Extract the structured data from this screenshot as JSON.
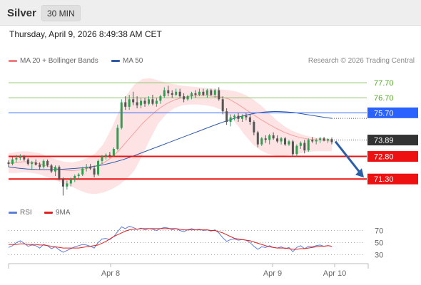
{
  "header": {
    "symbol": "Silver",
    "timeframe": "30 MIN"
  },
  "datetime": "Thursday, April 9, 2026 8:49:38 AM CET",
  "legend": {
    "items": [
      {
        "label": "MA 20 + Bollinger Bands",
        "color": "#f08080"
      },
      {
        "label": "MA 50",
        "color": "#2e5aa8"
      }
    ],
    "copyright": "Research © 2026 Trading Central"
  },
  "rsi_legend": {
    "items": [
      {
        "label": "RSI",
        "color": "#5b7fd6"
      },
      {
        "label": "9MA",
        "color": "#e02020"
      }
    ]
  },
  "chart_data": [
    {
      "type": "candlestick",
      "title": "",
      "x_ticks": [
        "Apr 8",
        "Apr 9",
        "Apr 10"
      ],
      "y_range": [
        69.7,
        78.7
      ],
      "last_price": 73.89,
      "levels": [
        {
          "value": 77.7,
          "label": "77.70",
          "kind": "resistance",
          "color": "#8fc46b"
        },
        {
          "value": 76.7,
          "label": "76.70",
          "kind": "resistance",
          "color": "#8fc46b"
        },
        {
          "value": 75.7,
          "label": "75.70",
          "kind": "pivot",
          "color": "#2962ff"
        },
        {
          "value": 73.89,
          "label": "73.89",
          "kind": "last",
          "color": "#333333"
        },
        {
          "value": 72.8,
          "label": "72.80",
          "kind": "support",
          "color": "#ee1111"
        },
        {
          "value": 71.3,
          "label": "71.30",
          "kind": "support",
          "color": "#ee1111"
        }
      ],
      "forecast": {
        "from": 73.89,
        "to": 71.3,
        "color": "#2b5fa8"
      },
      "candles": [
        [
          72.4,
          72.55,
          72.1,
          72.3
        ],
        [
          72.3,
          72.75,
          72.2,
          72.6
        ],
        [
          72.6,
          72.9,
          72.4,
          72.7
        ],
        [
          72.7,
          72.95,
          72.55,
          72.8
        ],
        [
          72.8,
          72.9,
          72.5,
          72.6
        ],
        [
          72.6,
          72.7,
          72.2,
          72.3
        ],
        [
          72.3,
          72.5,
          71.9,
          72.4
        ],
        [
          72.4,
          72.6,
          72.2,
          72.25
        ],
        [
          72.25,
          72.4,
          71.9,
          72.1
        ],
        [
          72.1,
          72.6,
          72.0,
          72.5
        ],
        [
          72.5,
          72.6,
          72.1,
          72.2
        ],
        [
          72.2,
          72.3,
          71.7,
          71.8
        ],
        [
          71.8,
          72.2,
          71.5,
          72.1
        ],
        [
          72.1,
          72.2,
          71.2,
          71.3
        ],
        [
          71.3,
          71.4,
          70.2,
          70.8
        ],
        [
          70.8,
          71.2,
          70.6,
          71.0
        ],
        [
          71.0,
          71.4,
          70.8,
          71.3
        ],
        [
          71.3,
          71.6,
          71.1,
          71.5
        ],
        [
          71.5,
          71.7,
          71.3,
          71.6
        ],
        [
          71.6,
          72.1,
          71.5,
          72.0
        ],
        [
          72.0,
          72.3,
          71.8,
          72.1
        ],
        [
          72.1,
          72.3,
          71.9,
          72.0
        ],
        [
          72.0,
          72.2,
          71.4,
          71.6
        ],
        [
          71.6,
          72.6,
          71.5,
          72.5
        ],
        [
          72.5,
          72.9,
          72.3,
          72.8
        ],
        [
          72.8,
          73.0,
          72.6,
          72.9
        ],
        [
          72.9,
          73.1,
          72.7,
          72.85
        ],
        [
          72.85,
          73.4,
          72.8,
          73.3
        ],
        [
          73.3,
          74.9,
          73.2,
          74.7
        ],
        [
          74.7,
          76.6,
          74.6,
          76.4
        ],
        [
          76.4,
          76.8,
          75.9,
          76.1
        ],
        [
          76.1,
          76.9,
          75.9,
          76.6
        ],
        [
          76.6,
          77.1,
          76.2,
          76.4
        ],
        [
          76.4,
          76.8,
          76.0,
          76.2
        ],
        [
          76.2,
          76.7,
          76.0,
          76.5
        ],
        [
          76.5,
          76.7,
          76.1,
          76.3
        ],
        [
          76.3,
          76.8,
          76.2,
          76.6
        ],
        [
          76.6,
          76.9,
          76.2,
          76.3
        ],
        [
          76.3,
          76.7,
          76.1,
          76.5
        ],
        [
          76.5,
          76.9,
          76.3,
          76.8
        ],
        [
          76.8,
          77.4,
          76.7,
          77.2
        ],
        [
          77.2,
          77.5,
          76.8,
          77.0
        ],
        [
          77.0,
          77.2,
          76.7,
          76.9
        ],
        [
          76.9,
          77.3,
          76.8,
          77.1
        ],
        [
          77.1,
          77.3,
          76.7,
          76.8
        ],
        [
          76.8,
          77.0,
          76.4,
          76.6
        ],
        [
          76.6,
          76.9,
          76.5,
          76.8
        ],
        [
          76.8,
          77.1,
          76.6,
          77.0
        ],
        [
          77.0,
          77.2,
          76.7,
          76.9
        ],
        [
          76.9,
          77.3,
          76.8,
          77.1
        ],
        [
          77.1,
          77.3,
          76.8,
          76.9
        ],
        [
          76.9,
          77.3,
          76.7,
          77.2
        ],
        [
          77.2,
          77.3,
          76.8,
          76.9
        ],
        [
          76.9,
          77.3,
          76.7,
          77.2
        ],
        [
          77.2,
          77.4,
          76.5,
          76.6
        ],
        [
          76.6,
          76.8,
          75.6,
          75.8
        ],
        [
          75.8,
          76.0,
          74.9,
          75.1
        ],
        [
          75.1,
          75.6,
          74.8,
          75.4
        ],
        [
          75.4,
          75.6,
          75.2,
          75.5
        ],
        [
          75.5,
          75.7,
          75.1,
          75.3
        ],
        [
          75.3,
          75.6,
          75.1,
          75.5
        ],
        [
          75.5,
          75.7,
          75.2,
          75.4
        ],
        [
          75.4,
          75.6,
          74.9,
          75.1
        ],
        [
          75.1,
          75.2,
          74.2,
          74.4
        ],
        [
          74.4,
          74.5,
          73.4,
          73.6
        ],
        [
          73.6,
          74.1,
          73.5,
          74.0
        ],
        [
          74.0,
          74.2,
          73.7,
          73.9
        ],
        [
          73.9,
          74.3,
          73.6,
          74.2
        ],
        [
          74.2,
          74.4,
          73.9,
          74.0
        ],
        [
          74.0,
          74.2,
          73.7,
          73.8
        ],
        [
          73.8,
          74.1,
          73.6,
          74.0
        ],
        [
          74.0,
          74.1,
          73.5,
          73.6
        ],
        [
          73.6,
          73.9,
          73.5,
          73.8
        ],
        [
          73.8,
          73.9,
          72.8,
          72.95
        ],
        [
          72.95,
          73.6,
          72.8,
          73.5
        ],
        [
          73.5,
          73.8,
          73.3,
          73.7
        ],
        [
          73.7,
          73.9,
          73.0,
          73.2
        ],
        [
          73.2,
          74.0,
          73.1,
          73.9
        ],
        [
          73.9,
          74.1,
          73.7,
          73.8
        ],
        [
          73.8,
          74.0,
          73.6,
          73.9
        ],
        [
          73.9,
          74.1,
          73.7,
          74.0
        ],
        [
          74.0,
          74.1,
          73.8,
          73.85
        ],
        [
          73.85,
          74.0,
          73.7,
          73.95
        ],
        [
          73.95,
          74.05,
          73.6,
          73.75
        ]
      ],
      "ma50": [
        72.1,
        72.02,
        71.96,
        71.93,
        71.92,
        71.93,
        71.96,
        72.0,
        72.06,
        72.14,
        72.25,
        72.4,
        72.58,
        72.8,
        73.04,
        73.28,
        73.52,
        73.76,
        74.0,
        74.24,
        74.48,
        74.72,
        74.96,
        75.18,
        75.38,
        75.55,
        75.68,
        75.76,
        75.79,
        75.77,
        75.72,
        75.62,
        75.52,
        75.42,
        75.33
      ],
      "ma20": [
        72.35,
        72.4,
        72.45,
        72.4,
        72.3,
        72.15,
        72.0,
        71.9,
        71.85,
        71.9,
        72.0,
        72.15,
        72.35,
        72.7,
        73.2,
        73.8,
        74.4,
        75.0,
        75.5,
        75.95,
        76.3,
        76.55,
        76.7,
        76.8,
        76.85,
        76.85,
        76.8,
        76.75,
        76.6,
        76.3,
        75.95,
        75.6,
        75.25,
        74.95,
        74.65,
        74.4,
        74.2,
        74.05,
        73.95,
        73.9,
        73.88,
        73.88
      ],
      "bb_upper": [
        73.0,
        73.1,
        73.15,
        73.1,
        73.0,
        72.8,
        72.6,
        72.45,
        72.4,
        72.5,
        72.7,
        73.0,
        73.6,
        74.6,
        75.8,
        76.9,
        77.6,
        77.95,
        78.0,
        77.85,
        77.7,
        77.6,
        77.5,
        77.45,
        77.4,
        77.35,
        77.3,
        77.25,
        77.2,
        77.1,
        76.9,
        76.6,
        76.2,
        75.7,
        75.2,
        74.8,
        74.5,
        74.3,
        74.15,
        74.05,
        74.0,
        73.98
      ],
      "bb_lower": [
        71.7,
        71.7,
        71.75,
        71.7,
        71.6,
        71.4,
        71.2,
        71.0,
        70.8,
        70.55,
        70.35,
        70.3,
        70.4,
        70.6,
        70.9,
        71.3,
        71.9,
        72.9,
        74.0,
        75.0,
        75.6,
        76.0,
        76.2,
        76.25,
        76.25,
        76.2,
        76.1,
        75.9,
        75.5,
        74.9,
        74.2,
        73.6,
        73.2,
        72.95,
        72.85,
        72.85,
        72.9,
        73.0,
        73.1,
        73.15,
        73.15,
        73.15
      ]
    },
    {
      "type": "line",
      "title": "RSI",
      "y_ticks": [
        70,
        50,
        30
      ],
      "y_range": [
        20,
        80
      ],
      "series": [
        {
          "name": "RSI",
          "color": "#5b7fd6",
          "values": [
            42,
            45,
            50,
            53,
            49,
            44,
            46,
            45,
            41,
            47,
            45,
            40,
            43,
            38,
            34,
            37,
            40,
            43,
            45,
            47,
            46,
            44,
            41,
            50,
            56,
            57,
            55,
            60,
            68,
            76,
            73,
            77,
            75,
            72,
            74,
            71,
            73,
            72,
            70,
            73,
            75,
            74,
            71,
            73,
            70,
            68,
            71,
            73,
            71,
            72,
            70,
            71,
            69,
            71,
            66,
            58,
            52,
            55,
            56,
            54,
            55,
            54,
            50,
            44,
            39,
            43,
            42,
            45,
            42,
            41,
            43,
            40,
            42,
            35,
            42,
            45,
            40,
            44,
            43,
            45,
            46,
            44,
            45,
            44
          ]
        },
        {
          "name": "9MA",
          "color": "#e02020",
          "values": [
            47,
            47,
            47,
            48,
            48,
            47,
            47,
            47,
            46,
            46,
            45,
            44,
            43,
            42,
            41,
            41,
            41,
            41,
            41,
            42,
            43,
            44,
            45,
            46,
            49,
            52,
            56,
            60,
            63,
            66,
            69,
            71,
            72,
            72,
            73,
            73,
            73,
            73,
            73,
            73,
            73,
            73,
            73,
            73,
            72,
            71,
            71,
            71,
            71,
            71,
            71,
            71,
            70,
            70,
            68,
            66,
            63,
            60,
            57,
            56,
            55,
            54,
            53,
            51,
            49,
            47,
            45,
            43,
            42,
            41,
            41,
            41,
            40,
            39,
            39,
            40,
            40,
            41,
            42,
            43,
            44,
            44,
            45,
            44
          ]
        }
      ]
    }
  ]
}
